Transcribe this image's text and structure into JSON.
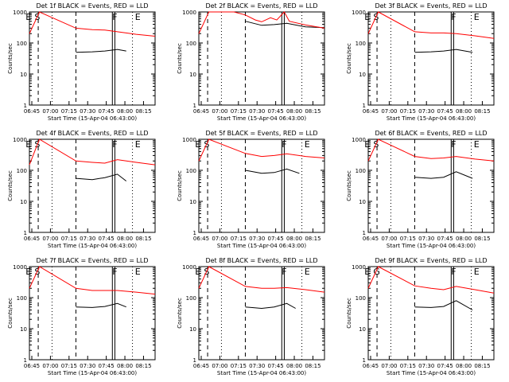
{
  "x_ticks": [
    "06:45",
    "07:00",
    "07:15",
    "07:30",
    "07:45",
    "08:00",
    "08:15"
  ],
  "y_ticks": [
    "1",
    "10",
    "100",
    "1000"
  ],
  "ylabel": "Counts/sec",
  "xlabel": "Start Time (15-Apr-04 06:43:00)",
  "colors": {
    "events": "#000000",
    "lld": "#ff0000",
    "axis": "#000000"
  },
  "chart_data": [
    {
      "type": "line",
      "title": "Det 1f BLACK = Events, RED = LLD",
      "markers": [
        "E",
        "S",
        "F",
        "E"
      ],
      "xlim": [
        0,
        100
      ],
      "ylim": [
        1,
        1000
      ],
      "yscale": "log",
      "series": [
        {
          "name": "BLACK = Events",
          "values": [
            [
              37,
              50
            ],
            [
              50,
              52
            ],
            [
              60,
              55
            ],
            [
              70,
              62
            ],
            [
              77,
              55
            ]
          ]
        },
        {
          "name": "RED = LLD",
          "values": [
            [
              0,
              200
            ],
            [
              8,
              1000
            ],
            [
              37,
              300
            ],
            [
              50,
              270
            ],
            [
              60,
              260
            ],
            [
              70,
              230
            ],
            [
              85,
              190
            ],
            [
              100,
              165
            ]
          ]
        }
      ]
    },
    {
      "type": "line",
      "title": "Det 2f BLACK = Events, RED = LLD",
      "markers": [],
      "xlim": [
        0,
        100
      ],
      "ylim": [
        1,
        1000
      ],
      "yscale": "log",
      "series": [
        {
          "name": "BLACK = Events",
          "values": [
            [
              37,
              500
            ],
            [
              50,
              370
            ],
            [
              60,
              390
            ],
            [
              70,
              430
            ],
            [
              85,
              330
            ],
            [
              100,
              310
            ]
          ]
        },
        {
          "name": "RED = LLD",
          "values": [
            [
              0,
              200
            ],
            [
              8,
              1000
            ],
            [
              28,
              1000
            ],
            [
              37,
              800
            ],
            [
              45,
              550
            ],
            [
              50,
              480
            ],
            [
              57,
              650
            ],
            [
              62,
              550
            ],
            [
              68,
              1000
            ],
            [
              72,
              500
            ],
            [
              85,
              380
            ],
            [
              100,
              300
            ]
          ]
        }
      ]
    },
    {
      "type": "line",
      "title": "Det 3f BLACK = Events, RED = LLD",
      "markers": [
        "E",
        "S",
        "F",
        "E"
      ],
      "xlim": [
        0,
        100
      ],
      "ylim": [
        1,
        1000
      ],
      "yscale": "log",
      "series": [
        {
          "name": "BLACK = Events",
          "values": [
            [
              37,
              50
            ],
            [
              50,
              52
            ],
            [
              60,
              55
            ],
            [
              70,
              62
            ],
            [
              83,
              50
            ]
          ]
        },
        {
          "name": "RED = LLD",
          "values": [
            [
              0,
              200
            ],
            [
              8,
              1000
            ],
            [
              37,
              230
            ],
            [
              50,
              210
            ],
            [
              60,
              210
            ],
            [
              70,
              200
            ],
            [
              85,
              170
            ],
            [
              100,
              140
            ]
          ]
        }
      ]
    },
    {
      "type": "line",
      "title": "Det 4f BLACK = Events, RED = LLD",
      "markers": [
        "E",
        "S",
        "F",
        "E"
      ],
      "xlim": [
        0,
        100
      ],
      "ylim": [
        1,
        1000
      ],
      "yscale": "log",
      "series": [
        {
          "name": "BLACK = Events",
          "values": [
            [
              37,
              55
            ],
            [
              50,
              50
            ],
            [
              60,
              58
            ],
            [
              70,
              75
            ],
            [
              77,
              45
            ]
          ]
        },
        {
          "name": "RED = LLD",
          "values": [
            [
              0,
              150
            ],
            [
              8,
              1000
            ],
            [
              37,
              200
            ],
            [
              50,
              180
            ],
            [
              60,
              170
            ],
            [
              70,
              220
            ],
            [
              85,
              180
            ],
            [
              100,
              150
            ]
          ]
        }
      ]
    },
    {
      "type": "line",
      "title": "Det 5f BLACK = Events, RED = LLD",
      "markers": [
        "E",
        "S",
        "F",
        "E"
      ],
      "xlim": [
        0,
        100
      ],
      "ylim": [
        1,
        1000
      ],
      "yscale": "log",
      "series": [
        {
          "name": "BLACK = Events",
          "values": [
            [
              37,
              100
            ],
            [
              50,
              80
            ],
            [
              60,
              85
            ],
            [
              70,
              110
            ],
            [
              80,
              80
            ]
          ]
        },
        {
          "name": "RED = LLD",
          "values": [
            [
              0,
              200
            ],
            [
              8,
              1000
            ],
            [
              37,
              350
            ],
            [
              50,
              280
            ],
            [
              60,
              300
            ],
            [
              70,
              340
            ],
            [
              85,
              280
            ],
            [
              100,
              250
            ]
          ]
        }
      ]
    },
    {
      "type": "line",
      "title": "Det 6f BLACK = Events, RED = LLD",
      "markers": [
        "E",
        "S",
        "F",
        "E"
      ],
      "xlim": [
        0,
        100
      ],
      "ylim": [
        1,
        1000
      ],
      "yscale": "log",
      "series": [
        {
          "name": "BLACK = Events",
          "values": [
            [
              37,
              60
            ],
            [
              50,
              55
            ],
            [
              60,
              60
            ],
            [
              70,
              90
            ],
            [
              83,
              55
            ]
          ]
        },
        {
          "name": "RED = LLD",
          "values": [
            [
              0,
              200
            ],
            [
              8,
              1000
            ],
            [
              37,
              280
            ],
            [
              50,
              240
            ],
            [
              60,
              250
            ],
            [
              70,
              280
            ],
            [
              85,
              230
            ],
            [
              100,
              200
            ]
          ]
        }
      ]
    },
    {
      "type": "line",
      "title": "Det 7f BLACK = Events, RED = LLD",
      "markers": [
        "E",
        "S",
        "F",
        "E"
      ],
      "xlim": [
        0,
        100
      ],
      "ylim": [
        1,
        1000
      ],
      "yscale": "log",
      "series": [
        {
          "name": "BLACK = Events",
          "values": [
            [
              37,
              50
            ],
            [
              50,
              48
            ],
            [
              60,
              52
            ],
            [
              70,
              65
            ],
            [
              77,
              50
            ]
          ]
        },
        {
          "name": "RED = LLD",
          "values": [
            [
              0,
              200
            ],
            [
              8,
              1000
            ],
            [
              37,
              200
            ],
            [
              50,
              170
            ],
            [
              60,
              170
            ],
            [
              70,
              170
            ],
            [
              85,
              150
            ],
            [
              100,
              130
            ]
          ]
        }
      ]
    },
    {
      "type": "line",
      "title": "Det 8f BLACK = Events, RED = LLD",
      "markers": [
        "E",
        "S",
        "F",
        "E"
      ],
      "xlim": [
        0,
        100
      ],
      "ylim": [
        1,
        1000
      ],
      "yscale": "log",
      "series": [
        {
          "name": "BLACK = Events",
          "values": [
            [
              37,
              50
            ],
            [
              50,
              45
            ],
            [
              60,
              50
            ],
            [
              70,
              65
            ],
            [
              77,
              45
            ]
          ]
        },
        {
          "name": "RED = LLD",
          "values": [
            [
              0,
              200
            ],
            [
              8,
              1000
            ],
            [
              37,
              230
            ],
            [
              50,
              200
            ],
            [
              60,
              200
            ],
            [
              70,
              210
            ],
            [
              85,
              180
            ],
            [
              100,
              150
            ]
          ]
        }
      ]
    },
    {
      "type": "line",
      "title": "Det 9f BLACK = Events, RED = LLD",
      "markers": [
        "E",
        "G",
        "F",
        "E"
      ],
      "xlim": [
        0,
        100
      ],
      "ylim": [
        1,
        1000
      ],
      "yscale": "log",
      "series": [
        {
          "name": "BLACK = Events",
          "values": [
            [
              37,
              50
            ],
            [
              50,
              48
            ],
            [
              60,
              52
            ],
            [
              70,
              80
            ],
            [
              83,
              40
            ]
          ]
        },
        {
          "name": "RED = LLD",
          "values": [
            [
              0,
              200
            ],
            [
              8,
              1000
            ],
            [
              37,
              240
            ],
            [
              50,
              200
            ],
            [
              60,
              180
            ],
            [
              70,
              230
            ],
            [
              85,
              180
            ],
            [
              100,
              140
            ]
          ]
        }
      ]
    }
  ]
}
